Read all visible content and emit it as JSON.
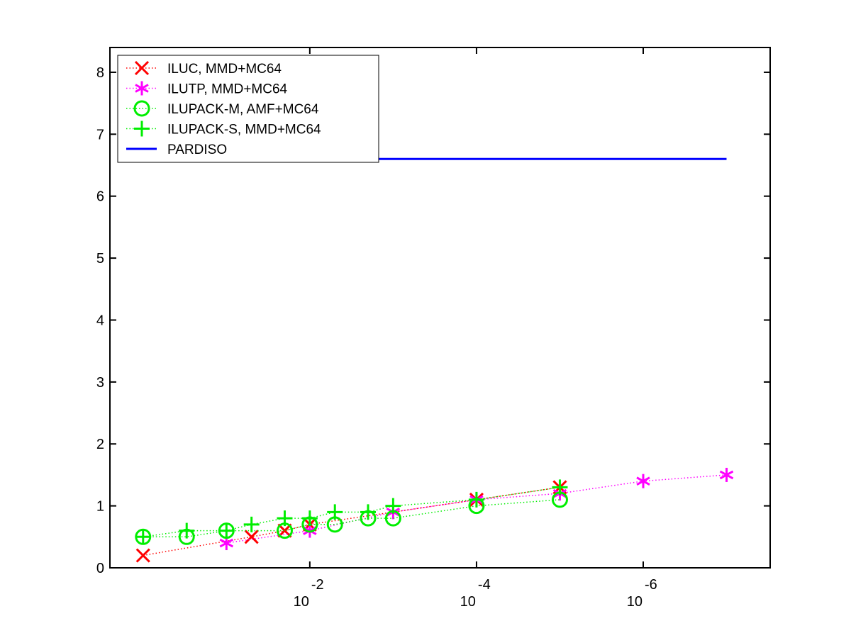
{
  "chart_data": {
    "type": "line",
    "x_scale": "log",
    "x_axis_direction": "decreasing",
    "xlim": [
      2.5,
      3e-08
    ],
    "ylim": [
      0,
      8.4
    ],
    "x_ticks": [
      {
        "value": 0.01,
        "base": "10",
        "exponent": "-2"
      },
      {
        "value": 0.0001,
        "base": "10",
        "exponent": "-4"
      },
      {
        "value": 1e-06,
        "base": "10",
        "exponent": "-6"
      }
    ],
    "y_ticks": [
      {
        "value": 0,
        "label": "0"
      },
      {
        "value": 1,
        "label": "1"
      },
      {
        "value": 2,
        "label": "2"
      },
      {
        "value": 3,
        "label": "3"
      },
      {
        "value": 4,
        "label": "4"
      },
      {
        "value": 5,
        "label": "5"
      },
      {
        "value": 6,
        "label": "6"
      },
      {
        "value": 7,
        "label": "7"
      },
      {
        "value": 8,
        "label": "8"
      }
    ],
    "grid": false,
    "legend_position": "top-left",
    "series": [
      {
        "name": "ILUC, MMD+MC64",
        "marker": "x",
        "color": "#ff0000",
        "line_style": "dotted",
        "points": [
          {
            "x": 1.0,
            "y": 0.2
          },
          {
            "x": 0.05,
            "y": 0.5
          },
          {
            "x": 0.02,
            "y": 0.6
          },
          {
            "x": 0.01,
            "y": 0.7
          },
          {
            "x": 0.0001,
            "y": 1.1
          },
          {
            "x": 1e-05,
            "y": 1.3
          }
        ]
      },
      {
        "name": "ILUTP, MMD+MC64",
        "marker": "asterisk",
        "color": "#ff00ff",
        "line_style": "dotted",
        "points": [
          {
            "x": 0.1,
            "y": 0.4
          },
          {
            "x": 0.01,
            "y": 0.6
          },
          {
            "x": 0.001,
            "y": 0.9
          },
          {
            "x": 0.0001,
            "y": 1.1
          },
          {
            "x": 1e-05,
            "y": 1.2
          },
          {
            "x": 1e-06,
            "y": 1.4
          },
          {
            "x": 1e-07,
            "y": 1.5
          }
        ]
      },
      {
        "name": "ILUPACK-M, AMF+MC64",
        "marker": "circle",
        "color": "#00ee00",
        "line_style": "dotted",
        "points": [
          {
            "x": 1.0,
            "y": 0.5
          },
          {
            "x": 0.3,
            "y": 0.5
          },
          {
            "x": 0.1,
            "y": 0.6
          },
          {
            "x": 0.02,
            "y": 0.6
          },
          {
            "x": 0.01,
            "y": 0.7
          },
          {
            "x": 0.005,
            "y": 0.7
          },
          {
            "x": 0.002,
            "y": 0.8
          },
          {
            "x": 0.001,
            "y": 0.8
          },
          {
            "x": 0.0001,
            "y": 1.0
          },
          {
            "x": 1e-05,
            "y": 1.1
          }
        ]
      },
      {
        "name": "ILUPACK-S, MMD+MC64",
        "marker": "plus",
        "color": "#00ee00",
        "line_style": "dotted",
        "points": [
          {
            "x": 1.0,
            "y": 0.5
          },
          {
            "x": 0.3,
            "y": 0.6
          },
          {
            "x": 0.1,
            "y": 0.6
          },
          {
            "x": 0.05,
            "y": 0.7
          },
          {
            "x": 0.02,
            "y": 0.8
          },
          {
            "x": 0.01,
            "y": 0.8
          },
          {
            "x": 0.005,
            "y": 0.9
          },
          {
            "x": 0.002,
            "y": 0.9
          },
          {
            "x": 0.001,
            "y": 1.0
          },
          {
            "x": 0.0001,
            "y": 1.1
          },
          {
            "x": 1e-05,
            "y": 1.3
          }
        ]
      },
      {
        "name": "PARDISO",
        "marker": "none",
        "color": "#0000ff",
        "line_style": "solid",
        "points": [
          {
            "x": 1.0,
            "y": 6.6
          },
          {
            "x": 1e-07,
            "y": 6.6
          }
        ]
      }
    ]
  }
}
